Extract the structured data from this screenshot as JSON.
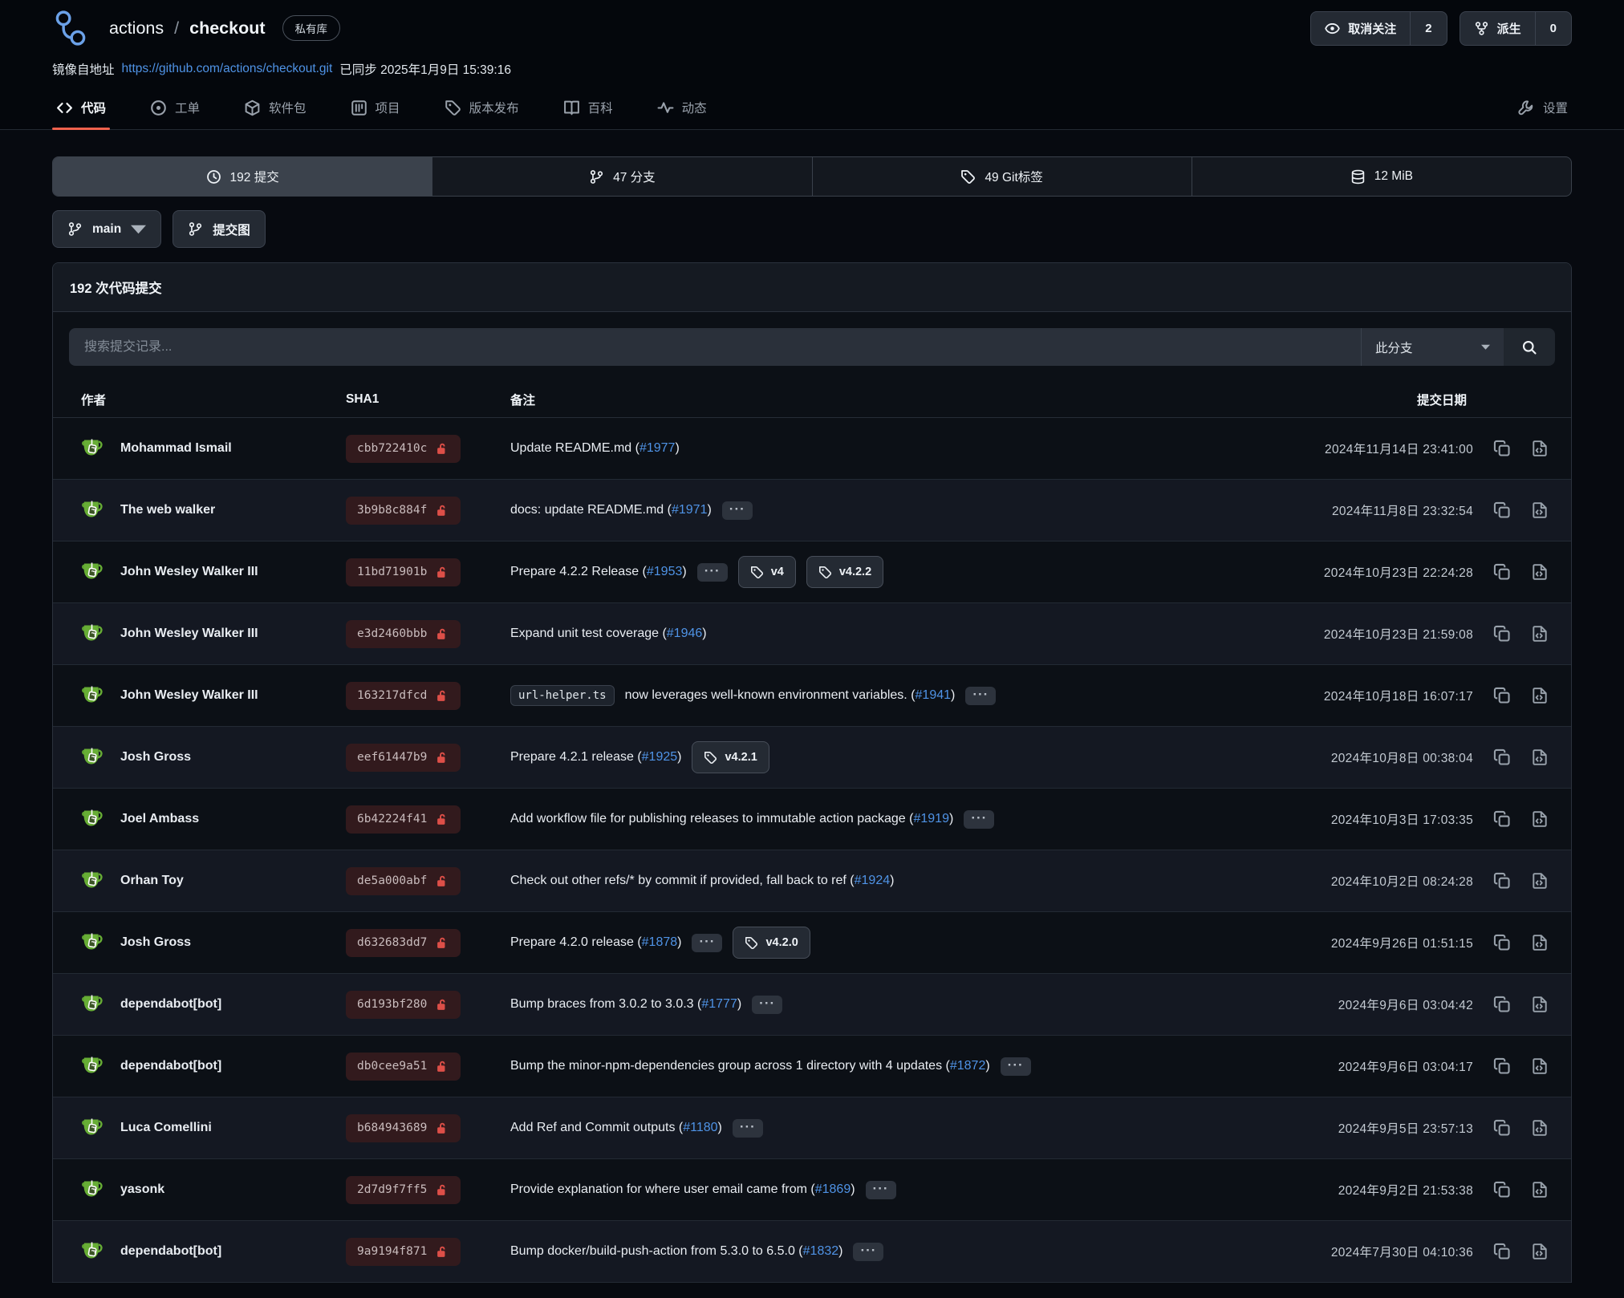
{
  "header": {
    "logo_icon": "mirror-repo-icon",
    "owner": "actions",
    "slash": "/",
    "repo": "checkout",
    "visibility_badge": "私有库",
    "watch_button": {
      "icon": "eye-icon",
      "label": "取消关注",
      "count": "2"
    },
    "fork_button": {
      "icon": "fork-icon",
      "label": "派生",
      "count": "0"
    },
    "mirror": {
      "prefix": "镜像自地址",
      "url": "https://github.com/actions/checkout.git",
      "synced": "已同步 2025年1月9日 15:39:16"
    }
  },
  "tabs": [
    {
      "id": "code",
      "icon": "code-icon",
      "label": "代码",
      "active": true
    },
    {
      "id": "issues",
      "icon": "issue-icon",
      "label": "工单",
      "active": false
    },
    {
      "id": "packages",
      "icon": "package-icon",
      "label": "软件包",
      "active": false
    },
    {
      "id": "projects",
      "icon": "project-board-icon",
      "label": "项目",
      "active": false
    },
    {
      "id": "releases",
      "icon": "tag-icon",
      "label": "版本发布",
      "active": false
    },
    {
      "id": "wiki",
      "icon": "book-icon",
      "label": "百科",
      "active": false
    },
    {
      "id": "activity",
      "icon": "pulse-icon",
      "label": "动态",
      "active": false
    }
  ],
  "settings_tab": {
    "icon": "wrench-icon",
    "label": "设置"
  },
  "stats": [
    {
      "id": "commits",
      "icon": "history-icon",
      "label": "192 提交",
      "active": true
    },
    {
      "id": "branches",
      "icon": "branch-icon",
      "label": "47 分支",
      "active": false
    },
    {
      "id": "git-tags",
      "icon": "tag-icon",
      "label": "49 Git标签",
      "active": false
    },
    {
      "id": "size",
      "icon": "database-icon",
      "label": "12 MiB",
      "active": false
    }
  ],
  "toolbar": {
    "branch_button": {
      "icon": "branch-icon",
      "label": "main",
      "caret": "caret-down-icon"
    },
    "graph_button": {
      "icon": "commit-graph-icon",
      "label": "提交图"
    }
  },
  "panel": {
    "title": "192 次代码提交",
    "search": {
      "placeholder": "搜索提交记录...",
      "filter_label": "此分支",
      "filter_caret": "caret-down-icon",
      "button_icon": "search-icon"
    },
    "columns": {
      "author": "作者",
      "sha": "SHA1",
      "message": "备注",
      "date": "提交日期"
    }
  },
  "row_icons": {
    "avatar": "teacup-avatar-icon",
    "lock": "unlock-icon",
    "tag": "tag-icon",
    "copy": "copy-icon",
    "view_file": "file-code-icon",
    "ellipsis_glyph": "···"
  },
  "commits": [
    {
      "author": "Mohammad Ismail",
      "sha": "cbb722410c",
      "code": null,
      "message": "Update README.md (",
      "issue": "#1977",
      "suffix": ")",
      "ellipsis": false,
      "tags": [],
      "date": "2024年11月14日 23:41:00"
    },
    {
      "author": "The web walker",
      "sha": "3b9b8c884f",
      "code": null,
      "message": "docs: update README.md (",
      "issue": "#1971",
      "suffix": ")",
      "ellipsis": true,
      "tags": [],
      "date": "2024年11月8日 23:32:54"
    },
    {
      "author": "John Wesley Walker III",
      "sha": "11bd71901b",
      "code": null,
      "message": "Prepare 4.2.2 Release (",
      "issue": "#1953",
      "suffix": ")",
      "ellipsis": true,
      "tags": [
        "v4",
        "v4.2.2"
      ],
      "date": "2024年10月23日 22:24:28"
    },
    {
      "author": "John Wesley Walker III",
      "sha": "e3d2460bbb",
      "code": null,
      "message": "Expand unit test coverage (",
      "issue": "#1946",
      "suffix": ")",
      "ellipsis": false,
      "tags": [],
      "date": "2024年10月23日 21:59:08"
    },
    {
      "author": "John Wesley Walker III",
      "sha": "163217dfcd",
      "code": "url-helper.ts",
      "message": "now leverages well-known environment variables. (",
      "issue": "#1941",
      "suffix": ")",
      "ellipsis": true,
      "tags": [],
      "date": "2024年10月18日 16:07:17"
    },
    {
      "author": "Josh Gross",
      "sha": "eef61447b9",
      "code": null,
      "message": "Prepare 4.2.1 release (",
      "issue": "#1925",
      "suffix": ")",
      "ellipsis": false,
      "tags": [
        "v4.2.1"
      ],
      "date": "2024年10月8日 00:38:04"
    },
    {
      "author": "Joel Ambass",
      "sha": "6b42224f41",
      "code": null,
      "message": "Add workflow file for publishing releases to immutable action package (",
      "issue": "#1919",
      "suffix": ")",
      "ellipsis": true,
      "tags": [],
      "date": "2024年10月3日 17:03:35"
    },
    {
      "author": "Orhan Toy",
      "sha": "de5a000abf",
      "code": null,
      "message": "Check out other refs/* by commit if provided, fall back to ref (",
      "issue": "#1924",
      "suffix": ")",
      "ellipsis": false,
      "tags": [],
      "date": "2024年10月2日 08:24:28"
    },
    {
      "author": "Josh Gross",
      "sha": "d632683dd7",
      "code": null,
      "message": "Prepare 4.2.0 release (",
      "issue": "#1878",
      "suffix": ")",
      "ellipsis": true,
      "tags": [
        "v4.2.0"
      ],
      "date": "2024年9月26日 01:51:15"
    },
    {
      "author": "dependabot[bot]",
      "sha": "6d193bf280",
      "code": null,
      "message": "Bump braces from 3.0.2 to 3.0.3 (",
      "issue": "#1777",
      "suffix": ")",
      "ellipsis": true,
      "tags": [],
      "date": "2024年9月6日 03:04:42"
    },
    {
      "author": "dependabot[bot]",
      "sha": "db0cee9a51",
      "code": null,
      "message": "Bump the minor-npm-dependencies group across 1 directory with 4 updates (",
      "issue": "#1872",
      "suffix": ")",
      "ellipsis": true,
      "tags": [],
      "date": "2024年9月6日 03:04:17"
    },
    {
      "author": "Luca Comellini",
      "sha": "b684943689",
      "code": null,
      "message": "Add Ref and Commit outputs (",
      "issue": "#1180",
      "suffix": ")",
      "ellipsis": true,
      "tags": [],
      "date": "2024年9月5日 23:57:13"
    },
    {
      "author": "yasonk",
      "sha": "2d7d9f7ff5",
      "code": null,
      "message": "Provide explanation for where user email came from (",
      "issue": "#1869",
      "suffix": ")",
      "ellipsis": true,
      "tags": [],
      "date": "2024年9月2日 21:53:38"
    },
    {
      "author": "dependabot[bot]",
      "sha": "9a9194f871",
      "code": null,
      "message": "Bump docker/build-push-action from 5.3.0 to 6.5.0 (",
      "issue": "#1832",
      "suffix": ")",
      "ellipsis": true,
      "tags": [],
      "date": "2024年7月30日 04:10:36"
    }
  ]
}
